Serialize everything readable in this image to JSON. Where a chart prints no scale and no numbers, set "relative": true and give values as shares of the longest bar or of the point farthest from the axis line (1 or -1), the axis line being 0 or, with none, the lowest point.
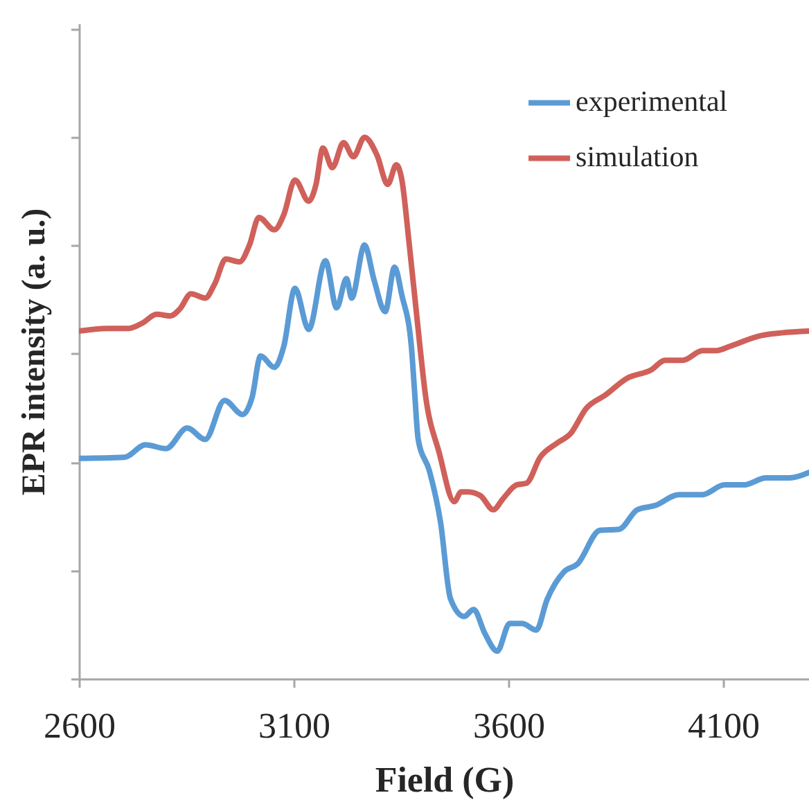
{
  "chart_data": {
    "type": "line",
    "xlabel": "Field (G)",
    "ylabel": "EPR intensity (a. u.)",
    "relative": true,
    "xlim": [
      2600,
      4300
    ],
    "xticks": [
      2600,
      3100,
      3600,
      4100
    ],
    "tick_labels": "x",
    "legend": "top right",
    "series": [
      {
        "name": "experimental",
        "color": "#5b9bd5",
        "x": [
          2600,
          2706,
          2755,
          2803,
          2852,
          2894,
          2939,
          2981,
          3003,
          3023,
          3055,
          3077,
          3103,
          3135,
          3174,
          3200,
          3223,
          3235,
          3265,
          3287,
          3313,
          3335,
          3352,
          3374,
          3381,
          3390,
          3416,
          3442,
          3465,
          3497,
          3519,
          3545,
          3574,
          3603,
          3632,
          3665,
          3690,
          3729,
          3761,
          3813,
          3858,
          3900,
          3942,
          3997,
          4052,
          4103,
          4148,
          4200,
          4255,
          4300
        ],
        "values": [
          0.407,
          0.409,
          0.432,
          0.425,
          0.463,
          0.442,
          0.514,
          0.488,
          0.519,
          0.596,
          0.575,
          0.614,
          0.721,
          0.645,
          0.772,
          0.685,
          0.739,
          0.703,
          0.801,
          0.737,
          0.678,
          0.76,
          0.708,
          0.614,
          0.537,
          0.442,
          0.384,
          0.289,
          0.148,
          0.115,
          0.128,
          0.084,
          0.051,
          0.102,
          0.102,
          0.09,
          0.146,
          0.197,
          0.212,
          0.274,
          0.276,
          0.312,
          0.32,
          0.34,
          0.34,
          0.358,
          0.358,
          0.371,
          0.371,
          0.381
        ]
      },
      {
        "name": "simulation",
        "color": "#d0605a",
        "x": [
          2600,
          2665,
          2716,
          2748,
          2781,
          2813,
          2835,
          2861,
          2894,
          2916,
          2942,
          2974,
          2997,
          3019,
          3055,
          3077,
          3103,
          3135,
          3152,
          3168,
          3190,
          3216,
          3239,
          3265,
          3294,
          3319,
          3339,
          3352,
          3368,
          3394,
          3406,
          3439,
          3474,
          3490,
          3506,
          3535,
          3565,
          3587,
          3619,
          3642,
          3674,
          3713,
          3745,
          3781,
          3826,
          3877,
          3932,
          3965,
          4006,
          4052,
          4084,
          4116,
          4190,
          4300
        ],
        "values": [
          0.642,
          0.647,
          0.647,
          0.657,
          0.673,
          0.67,
          0.683,
          0.711,
          0.703,
          0.729,
          0.775,
          0.77,
          0.801,
          0.852,
          0.829,
          0.857,
          0.921,
          0.882,
          0.913,
          0.98,
          0.944,
          0.99,
          0.964,
          1.0,
          0.967,
          0.913,
          0.949,
          0.921,
          0.811,
          0.614,
          0.529,
          0.417,
          0.327,
          0.345,
          0.345,
          0.338,
          0.312,
          0.332,
          0.358,
          0.361,
          0.409,
          0.435,
          0.453,
          0.499,
          0.524,
          0.555,
          0.57,
          0.588,
          0.588,
          0.606,
          0.606,
          0.614,
          0.634,
          0.642
        ]
      }
    ]
  }
}
